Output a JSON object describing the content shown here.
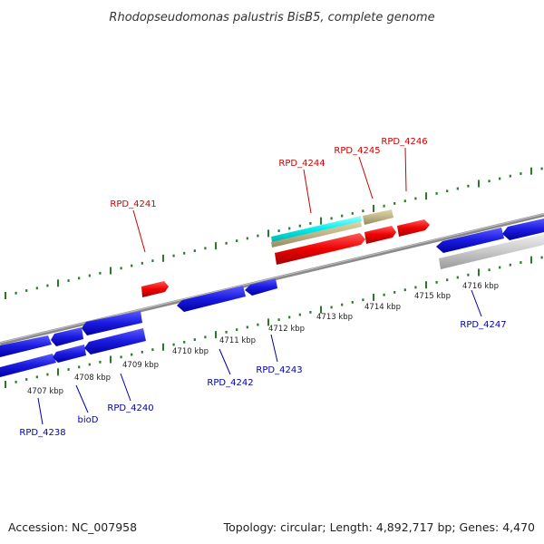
{
  "title": "Rhodopseudomonas palustris BisB5, complete genome",
  "footer": {
    "accession": "Accession: NC_007958",
    "summary": "Topology: circular; Length: 4,892,717 bp; Genes: 4,470"
  },
  "colors": {
    "forward_label": "#cc0000",
    "reverse_label": "#0000aa",
    "backbone": "#888888",
    "ticks": "#2a7a2a",
    "gene_red": "#ee0000",
    "gene_blue": "#1a1ae0",
    "gene_cyan": "#00eeee",
    "gene_tan": "#bfb486",
    "gene_grey": "#c8c8c8"
  },
  "kbp_labels": [
    "4707 kbp",
    "4708 kbp",
    "4709 kbp",
    "4710 kbp",
    "4711 kbp",
    "4712 kbp",
    "4713 kbp",
    "4714 kbp",
    "4715 kbp",
    "4716 kbp"
  ],
  "gene_labels": {
    "forward": [
      "RPD_4241",
      "RPD_4244",
      "RPD_4245",
      "RPD_4246"
    ],
    "reverse": [
      "RPD_4238",
      "bioD",
      "RPD_4240",
      "RPD_4242",
      "RPD_4243",
      "RPD_4247"
    ]
  }
}
